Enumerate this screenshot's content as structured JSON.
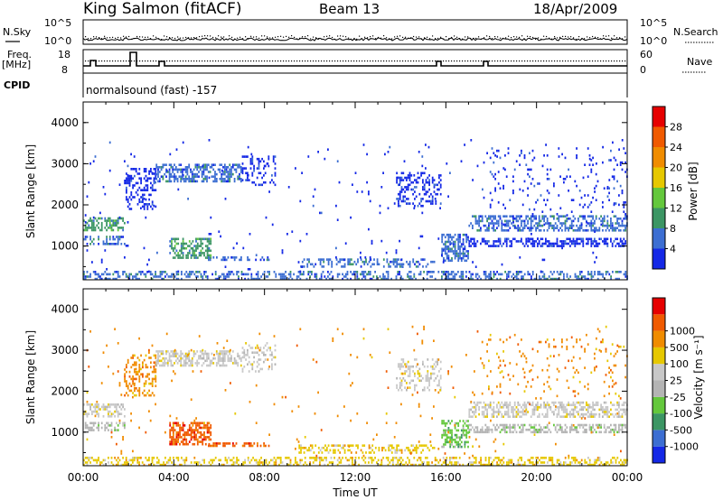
{
  "header": {
    "station": "King Salmon (fitACF)",
    "beam": "Beam 13",
    "date": "18/Apr/2009"
  },
  "top_panels": {
    "nsky_label": "N.Sky",
    "nsearch_label": "N.Search",
    "noise_ticks": [
      "10^5",
      "10^0"
    ],
    "freq_label": "Freq.",
    "freq_unit": "[MHz]",
    "freq_ticks": [
      "18",
      "8"
    ],
    "nave_label": "Nave",
    "nave_ticks": [
      "60",
      "0"
    ],
    "cpid_label": "CPID",
    "cpid_value": "normalsound (fast) -157"
  },
  "colors": {
    "power_scale": [
      "#1428e6",
      "#3c6ed2",
      "#3c9664",
      "#64c83c",
      "#e6c800",
      "#f08c00",
      "#f05a00",
      "#e60000"
    ],
    "velocity_scale": [
      "#e60000",
      "#f05a00",
      "#f08c00",
      "#e6c800",
      "#c8c8c8",
      "#b4b4b4",
      "#64c83c",
      "#3c9664",
      "#3c6ed2",
      "#1428e6"
    ]
  },
  "chart_data": [
    {
      "type": "heatmap",
      "name": "Power panel",
      "ylabel": "Slant Range [km]",
      "ylim": [
        180,
        4500
      ],
      "yticks": [
        "1000",
        "2000",
        "3000",
        "4000"
      ],
      "xlim": [
        0,
        24
      ],
      "colorbar_label": "Power [dB]",
      "colorbar_ticks": [
        "4",
        "8",
        "12",
        "16",
        "20",
        "24",
        "28"
      ],
      "scatter_regions": [
        {
          "t0": 0.0,
          "t1": 1.8,
          "r0": 1400,
          "r1": 1700,
          "level": 2,
          "density": 0.55
        },
        {
          "t0": 0.0,
          "t1": 1.8,
          "r0": 1050,
          "r1": 1250,
          "level": 1,
          "density": 0.45
        },
        {
          "t0": 1.8,
          "t1": 3.2,
          "r0": 1900,
          "r1": 2900,
          "level": 0,
          "density": 0.35
        },
        {
          "t0": 3.2,
          "t1": 7.0,
          "r0": 2600,
          "r1": 3000,
          "level": 1,
          "density": 0.55
        },
        {
          "t0": 3.8,
          "t1": 5.6,
          "r0": 700,
          "r1": 1200,
          "level": 2,
          "density": 0.55
        },
        {
          "t0": 5.5,
          "t1": 8.2,
          "r0": 650,
          "r1": 750,
          "level": 1,
          "density": 0.45
        },
        {
          "t0": 7.0,
          "t1": 8.5,
          "r0": 2500,
          "r1": 3200,
          "level": 0,
          "density": 0.25
        },
        {
          "t0": 9.5,
          "t1": 15.5,
          "r0": 480,
          "r1": 700,
          "level": 1,
          "density": 0.4
        },
        {
          "t0": 13.8,
          "t1": 15.8,
          "r0": 2000,
          "r1": 2800,
          "level": 0,
          "density": 0.3
        },
        {
          "t0": 15.8,
          "t1": 17.0,
          "r0": 650,
          "r1": 1300,
          "level": 1,
          "density": 0.55
        },
        {
          "t0": 17.0,
          "t1": 24.0,
          "r0": 1400,
          "r1": 1750,
          "level": 1,
          "density": 0.5
        },
        {
          "t0": 17.0,
          "t1": 24.0,
          "r0": 1000,
          "r1": 1200,
          "level": 0,
          "density": 0.5
        },
        {
          "t0": 17.5,
          "t1": 24.0,
          "r0": 1800,
          "r1": 3400,
          "level": 0,
          "density": 0.06
        },
        {
          "t0": 0.0,
          "t1": 24.0,
          "r0": 200,
          "r1": 400,
          "level": 1,
          "density": 0.4
        },
        {
          "t0": 0.0,
          "t1": 24.0,
          "r0": 400,
          "r1": 3600,
          "level": 0,
          "density": 0.012
        }
      ]
    },
    {
      "type": "heatmap",
      "name": "Velocity panel",
      "ylabel": "Slant Range [km]",
      "ylim": [
        180,
        4500
      ],
      "yticks": [
        "1000",
        "2000",
        "3000",
        "4000"
      ],
      "xlim": [
        0,
        24
      ],
      "xlabel": "Time UT",
      "xticks": [
        "00:00",
        "04:00",
        "08:00",
        "12:00",
        "16:00",
        "20:00",
        "00:00"
      ],
      "colorbar_label": "Velocity [m s⁻¹]",
      "colorbar_ticks": [
        "-1000",
        "-500",
        "-100",
        "-25",
        "25",
        "100",
        "500",
        "1000"
      ],
      "scatter_regions": [
        {
          "t0": 0.0,
          "t1": 1.8,
          "r0": 1400,
          "r1": 1700,
          "level": 4,
          "density": 0.55
        },
        {
          "t0": 0.0,
          "t1": 1.8,
          "r0": 1050,
          "r1": 1250,
          "level": 5,
          "density": 0.45
        },
        {
          "t0": 1.8,
          "t1": 3.2,
          "r0": 1900,
          "r1": 2900,
          "level": 2,
          "density": 0.35
        },
        {
          "t0": 3.2,
          "t1": 7.0,
          "r0": 2600,
          "r1": 3000,
          "level": 4,
          "density": 0.55
        },
        {
          "t0": 3.8,
          "t1": 5.6,
          "r0": 700,
          "r1": 1250,
          "level": 1,
          "density": 0.6
        },
        {
          "t0": 5.5,
          "t1": 8.2,
          "r0": 650,
          "r1": 750,
          "level": 1,
          "density": 0.45
        },
        {
          "t0": 7.0,
          "t1": 8.5,
          "r0": 2500,
          "r1": 3200,
          "level": 4,
          "density": 0.25
        },
        {
          "t0": 9.5,
          "t1": 15.5,
          "r0": 480,
          "r1": 700,
          "level": 3,
          "density": 0.4
        },
        {
          "t0": 13.8,
          "t1": 15.8,
          "r0": 2000,
          "r1": 2800,
          "level": 4,
          "density": 0.3
        },
        {
          "t0": 15.8,
          "t1": 17.0,
          "r0": 650,
          "r1": 1300,
          "level": 6,
          "density": 0.55
        },
        {
          "t0": 17.0,
          "t1": 24.0,
          "r0": 1400,
          "r1": 1750,
          "level": 4,
          "density": 0.5
        },
        {
          "t0": 17.0,
          "t1": 24.0,
          "r0": 1000,
          "r1": 1200,
          "level": 5,
          "density": 0.5
        },
        {
          "t0": 17.5,
          "t1": 24.0,
          "r0": 1800,
          "r1": 3400,
          "level": 2,
          "density": 0.06
        },
        {
          "t0": 0.0,
          "t1": 24.0,
          "r0": 200,
          "r1": 400,
          "level": 3,
          "density": 0.4
        },
        {
          "t0": 0.0,
          "t1": 24.0,
          "r0": 400,
          "r1": 3600,
          "level": 2,
          "density": 0.012
        }
      ]
    }
  ]
}
